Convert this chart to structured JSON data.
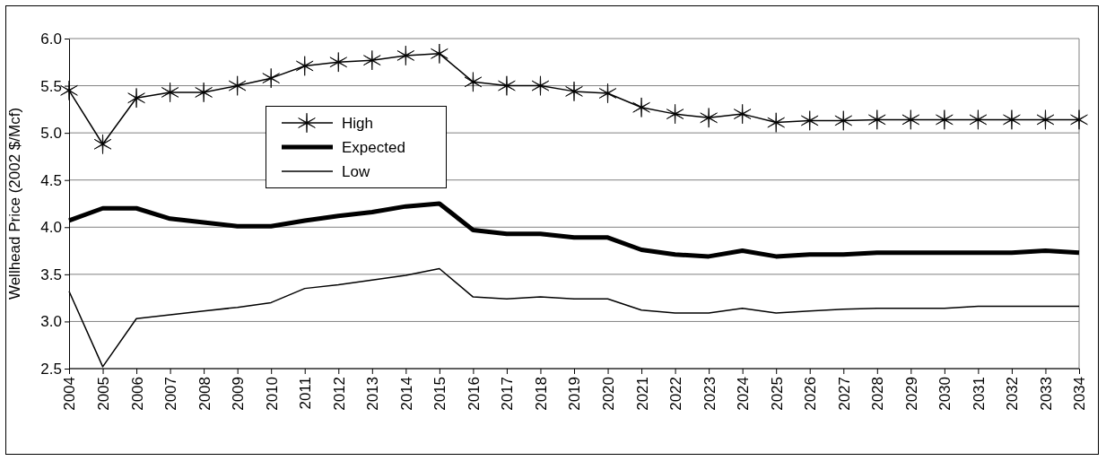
{
  "chart_data": {
    "type": "line",
    "ylabel": "Wellhead Price (2002 $/Mcf)",
    "categories": [
      "2004",
      "2005",
      "2006",
      "2007",
      "2008",
      "2009",
      "2010",
      "2011",
      "2012",
      "2013",
      "2014",
      "2015",
      "2016",
      "2017",
      "2018",
      "2019",
      "2020",
      "2021",
      "2022",
      "2023",
      "2024",
      "2025",
      "2026",
      "2027",
      "2028",
      "2029",
      "2030",
      "2031",
      "2032",
      "2033",
      "2034"
    ],
    "series": [
      {
        "name": "High",
        "color": "#000000",
        "marker": "cross",
        "values": [
          5.45,
          4.88,
          5.37,
          5.43,
          5.43,
          5.5,
          5.58,
          5.71,
          5.75,
          5.77,
          5.82,
          5.84,
          5.54,
          5.5,
          5.5,
          5.44,
          5.42,
          5.27,
          5.2,
          5.16,
          5.2,
          5.11,
          5.13,
          5.13,
          5.14,
          5.14,
          5.14,
          5.14,
          5.14,
          5.14,
          5.14
        ]
      },
      {
        "name": "Expected",
        "color": "#000000",
        "marker": "none",
        "values": [
          4.07,
          4.2,
          4.2,
          4.09,
          4.05,
          4.01,
          4.01,
          4.07,
          4.12,
          4.16,
          4.22,
          4.25,
          3.97,
          3.93,
          3.93,
          3.89,
          3.89,
          3.76,
          3.71,
          3.69,
          3.75,
          3.69,
          3.71,
          3.71,
          3.73,
          3.73,
          3.73,
          3.73,
          3.73,
          3.75,
          3.73
        ]
      },
      {
        "name": "Low",
        "color": "#000000",
        "marker": "none",
        "values": [
          3.32,
          2.52,
          3.03,
          3.07,
          3.11,
          3.15,
          3.2,
          3.35,
          3.39,
          3.44,
          3.49,
          3.56,
          3.26,
          3.24,
          3.26,
          3.24,
          3.24,
          3.12,
          3.09,
          3.09,
          3.14,
          3.09,
          3.11,
          3.13,
          3.14,
          3.14,
          3.14,
          3.16,
          3.16,
          3.16,
          3.16
        ]
      }
    ],
    "ylim": [
      2.5,
      6.0
    ],
    "yticks": [
      {
        "value": 2.5,
        "label": "2.5"
      },
      {
        "value": 3.0,
        "label": "3.0"
      },
      {
        "value": 3.5,
        "label": "3.5"
      },
      {
        "value": 4.0,
        "label": "4.0"
      },
      {
        "value": 4.5,
        "label": "4.5"
      },
      {
        "value": 5.0,
        "label": "5.0"
      },
      {
        "value": 5.5,
        "label": "5.5"
      },
      {
        "value": 6.0,
        "label": "6.0"
      }
    ],
    "grid": "y",
    "legend": "top left",
    "line_style": "solid"
  }
}
